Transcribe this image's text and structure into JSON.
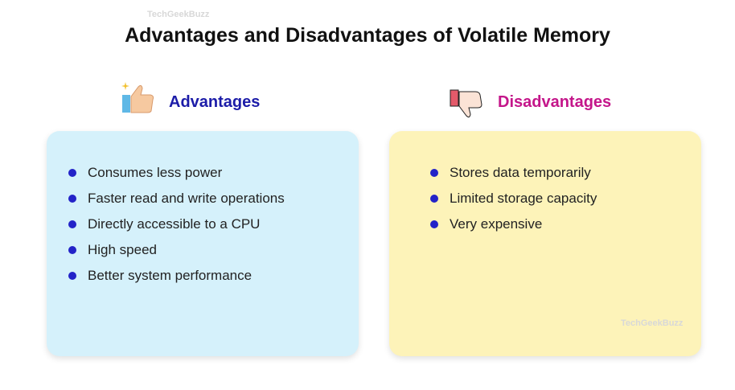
{
  "header": {
    "title": "Advantages and Disadvantages of Volatile Memory",
    "watermark": "TechGeekBuzz"
  },
  "advantages": {
    "heading": "Advantages",
    "items": [
      "Consumes less power",
      "Faster read and write operations",
      "Directly accessible to a CPU",
      "High speed",
      "Better system performance"
    ]
  },
  "disadvantages": {
    "heading": "Disadvantages",
    "items": [
      "Stores data temporarily",
      "Limited storage capacity",
      "Very expensive"
    ]
  }
}
